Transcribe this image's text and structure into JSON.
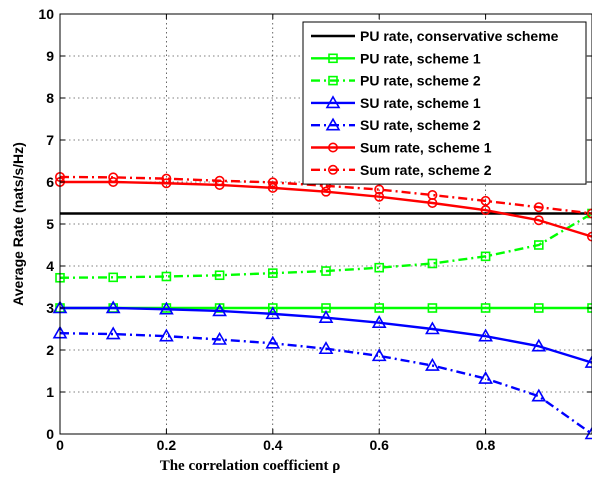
{
  "chart_data": {
    "type": "line",
    "title": "",
    "xlabel": "The correlation coefficient ρ",
    "ylabel": "Average Rate (nats/s/Hz)",
    "xlim": [
      0,
      1
    ],
    "ylim": [
      0,
      10
    ],
    "x_ticks": [
      "0",
      "0.2",
      "0.4",
      "0.6",
      "0.8"
    ],
    "y_ticks": [
      "0",
      "1",
      "2",
      "3",
      "4",
      "5",
      "6",
      "7",
      "8",
      "9",
      "10"
    ],
    "grid": true,
    "legend_position": "top-right",
    "x": [
      0,
      0.1,
      0.2,
      0.3,
      0.4,
      0.5,
      0.6,
      0.7,
      0.8,
      0.9,
      1.0
    ],
    "series": [
      {
        "name": "PU rate, conservative scheme",
        "color": "#000000",
        "dash": "solid",
        "marker": "none",
        "values": [
          5.25,
          5.25,
          5.25,
          5.25,
          5.25,
          5.25,
          5.25,
          5.25,
          5.25,
          5.25,
          5.25
        ]
      },
      {
        "name": "PU rate, scheme 1",
        "color": "#00ff00",
        "dash": "solid",
        "marker": "square",
        "values": [
          3.0,
          3.0,
          3.0,
          3.0,
          3.0,
          3.0,
          3.0,
          3.0,
          3.0,
          3.0,
          3.0
        ]
      },
      {
        "name": "PU rate, scheme 2",
        "color": "#00ff00",
        "dash": "dashdot",
        "marker": "square",
        "values": [
          3.72,
          3.73,
          3.75,
          3.78,
          3.83,
          3.88,
          3.96,
          4.06,
          4.23,
          4.5,
          5.25
        ]
      },
      {
        "name": "SU rate, scheme 1",
        "color": "#0000ff",
        "dash": "solid",
        "marker": "triangle",
        "values": [
          3.0,
          3.0,
          2.97,
          2.93,
          2.86,
          2.77,
          2.65,
          2.5,
          2.33,
          2.09,
          1.7
        ]
      },
      {
        "name": "SU rate, scheme 2",
        "color": "#0000ff",
        "dash": "dashdot",
        "marker": "triangle",
        "values": [
          2.4,
          2.38,
          2.33,
          2.25,
          2.16,
          2.03,
          1.86,
          1.63,
          1.32,
          0.9,
          0.0
        ]
      },
      {
        "name": "Sum rate, scheme 1",
        "color": "#ff0000",
        "dash": "solid",
        "marker": "circle",
        "values": [
          6.0,
          6.0,
          5.97,
          5.93,
          5.86,
          5.77,
          5.65,
          5.5,
          5.33,
          5.09,
          4.7
        ]
      },
      {
        "name": "Sum rate, scheme 2",
        "color": "#ff0000",
        "dash": "dashdot",
        "marker": "circle",
        "values": [
          6.12,
          6.11,
          6.08,
          6.03,
          5.99,
          5.91,
          5.82,
          5.69,
          5.55,
          5.4,
          5.25
        ]
      }
    ]
  }
}
